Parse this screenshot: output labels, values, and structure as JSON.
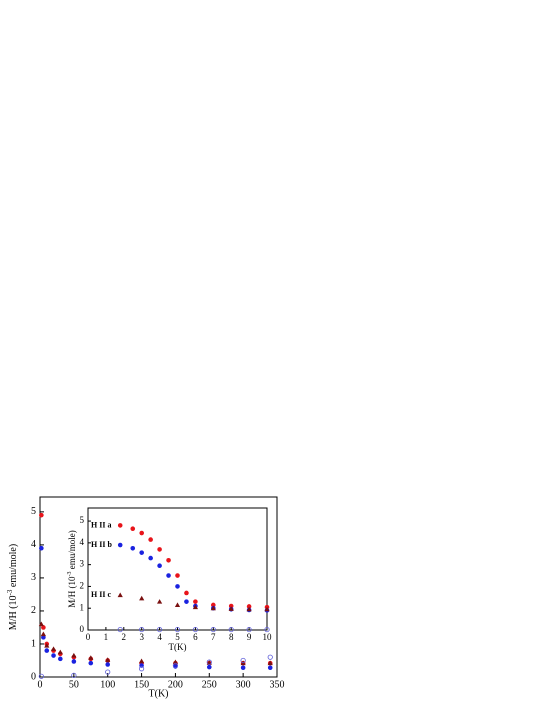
{
  "chart_data": [
    {
      "type": "scatter",
      "x_label": "T(K)",
      "y_label": [
        "M/H (10",
        "-3",
        " emu/mole)"
      ],
      "xlim": [
        0,
        350
      ],
      "xticks": [
        0,
        50,
        100,
        150,
        200,
        250,
        300,
        350
      ],
      "ylim": [
        0,
        5.45
      ],
      "yticks": [
        0,
        1,
        2,
        3,
        4,
        5
      ],
      "series": [
        {
          "color": "#e8141a",
          "marker": "circle",
          "x": [
            2,
            5,
            10,
            20,
            30,
            50,
            75,
            100,
            150,
            200,
            250,
            300,
            340
          ],
          "values": [
            4.9,
            1.5,
            1.0,
            0.8,
            0.7,
            0.6,
            0.55,
            0.5,
            0.42,
            0.42,
            0.42,
            0.42,
            0.42
          ]
        },
        {
          "color": "#1a22e0",
          "marker": "circle",
          "x": [
            2,
            5,
            10,
            20,
            30,
            50,
            75,
            100,
            150,
            200,
            250,
            300,
            340
          ],
          "values": [
            3.9,
            1.2,
            0.8,
            0.65,
            0.55,
            0.47,
            0.42,
            0.38,
            0.35,
            0.32,
            0.3,
            0.28,
            0.28
          ]
        },
        {
          "color": "#7a1010",
          "marker": "triangle",
          "x": [
            2,
            5,
            10,
            20,
            30,
            50,
            75,
            100,
            150,
            200,
            250,
            300,
            340
          ],
          "values": [
            1.6,
            1.3,
            0.95,
            0.85,
            0.75,
            0.65,
            0.58,
            0.52,
            0.48,
            0.45,
            0.43,
            0.42,
            0.42
          ]
        },
        {
          "color": "#5a5ad8",
          "marker": "open-circle",
          "x": [
            2,
            50,
            100,
            150,
            200,
            250,
            300,
            340
          ],
          "values": [
            0.02,
            0.05,
            0.15,
            0.25,
            0.35,
            0.45,
            0.5,
            0.6
          ]
        }
      ]
    },
    {
      "type": "scatter",
      "x_label": "T(K)",
      "y_label": [
        "M/H (10",
        "-3",
        " emu/mole)"
      ],
      "xlim": [
        0,
        10
      ],
      "xticks": [
        0,
        1,
        2,
        3,
        4,
        5,
        6,
        7,
        8,
        9,
        10
      ],
      "ylim": [
        0,
        5.6
      ],
      "yticks": [
        0,
        1,
        2,
        3,
        4,
        5
      ],
      "series": [
        {
          "name": "H II a",
          "color": "#e8141a",
          "marker": "circle",
          "x": [
            1.8,
            2.5,
            3,
            3.5,
            4,
            4.5,
            5,
            5.5,
            6,
            7,
            8,
            9,
            10
          ],
          "values": [
            4.8,
            4.65,
            4.45,
            4.15,
            3.7,
            3.2,
            2.5,
            1.7,
            1.3,
            1.15,
            1.1,
            1.08,
            1.05
          ]
        },
        {
          "name": "H II b",
          "color": "#1a22e0",
          "marker": "circle",
          "x": [
            1.8,
            2.5,
            3,
            3.5,
            4,
            4.5,
            5,
            5.5,
            6,
            7,
            8,
            9,
            10
          ],
          "values": [
            3.9,
            3.75,
            3.55,
            3.3,
            2.95,
            2.5,
            2.0,
            1.3,
            1.1,
            1.0,
            0.95,
            0.92,
            0.9
          ]
        },
        {
          "name": "H II c",
          "color": "#7a1010",
          "marker": "triangle",
          "x": [
            1.8,
            3,
            4,
            5,
            6,
            7,
            8,
            9,
            10
          ],
          "values": [
            1.6,
            1.45,
            1.3,
            1.15,
            1.05,
            1.0,
            0.97,
            0.95,
            0.95
          ]
        },
        {
          "color": "#5a5ad8",
          "marker": "open-circle",
          "x": [
            1.8,
            3,
            4,
            5,
            6,
            7,
            8,
            9,
            10
          ],
          "values": [
            0.02,
            0.02,
            0.02,
            0.02,
            0.02,
            0.02,
            0.02,
            0.02,
            0.02
          ]
        }
      ]
    }
  ]
}
